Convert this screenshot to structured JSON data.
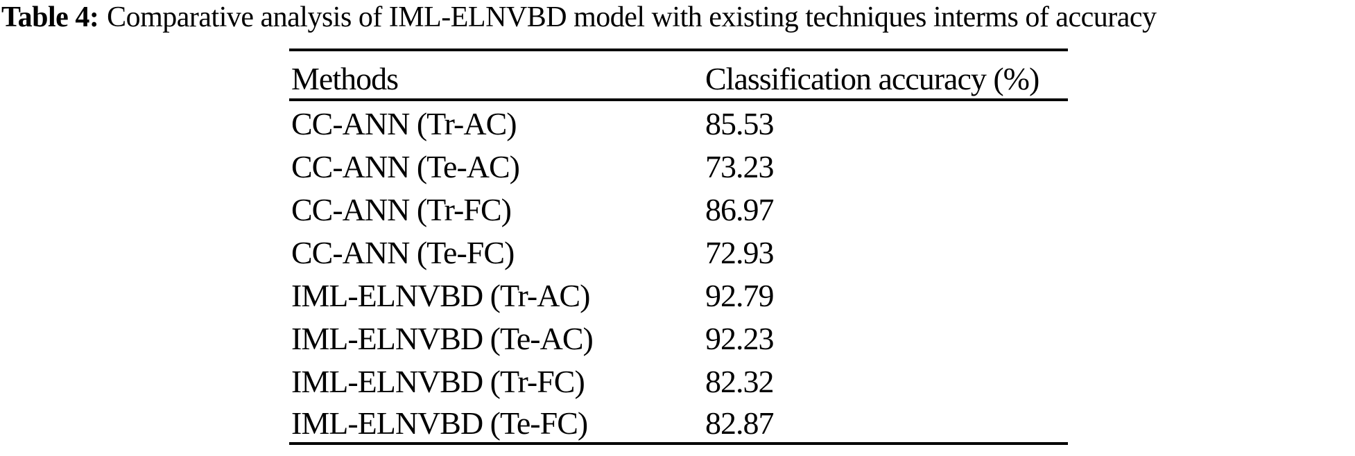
{
  "page": {
    "background_color": "#ffffff",
    "text_color": "#000000",
    "rule_color": "#000000"
  },
  "caption": {
    "label": "Table 4:",
    "text": "Comparative analysis of IML-ELNVBD model with existing techniques interms of accuracy"
  },
  "table": {
    "headers": [
      "Methods",
      "Classification accuracy (%)"
    ],
    "rows": [
      {
        "method": "CC-ANN (Tr-AC)",
        "accuracy": "85.53"
      },
      {
        "method": "CC-ANN (Te-AC)",
        "accuracy": "73.23"
      },
      {
        "method": "CC-ANN (Tr-FC)",
        "accuracy": "86.97"
      },
      {
        "method": "CC-ANN (Te-FC)",
        "accuracy": "72.93"
      },
      {
        "method": "IML-ELNVBD (Tr-AC)",
        "accuracy": "92.79"
      },
      {
        "method": "IML-ELNVBD (Te-AC)",
        "accuracy": "92.23"
      },
      {
        "method": "IML-ELNVBD (Tr-FC)",
        "accuracy": "82.32"
      },
      {
        "method": "IML-ELNVBD (Te-FC)",
        "accuracy": "82.87"
      }
    ]
  },
  "chart_data": {
    "type": "table",
    "title": "Table 4: Comparative analysis of IML-ELNVBD model with existing techniques interms of accuracy",
    "columns": [
      "Methods",
      "Classification accuracy (%)"
    ],
    "categories": [
      "CC-ANN (Tr-AC)",
      "CC-ANN (Te-AC)",
      "CC-ANN (Tr-FC)",
      "CC-ANN (Te-FC)",
      "IML-ELNVBD (Tr-AC)",
      "IML-ELNVBD (Te-AC)",
      "IML-ELNVBD (Tr-FC)",
      "IML-ELNVBD (Te-FC)"
    ],
    "values": [
      85.53,
      73.23,
      86.97,
      72.93,
      92.79,
      92.23,
      82.32,
      82.87
    ]
  }
}
